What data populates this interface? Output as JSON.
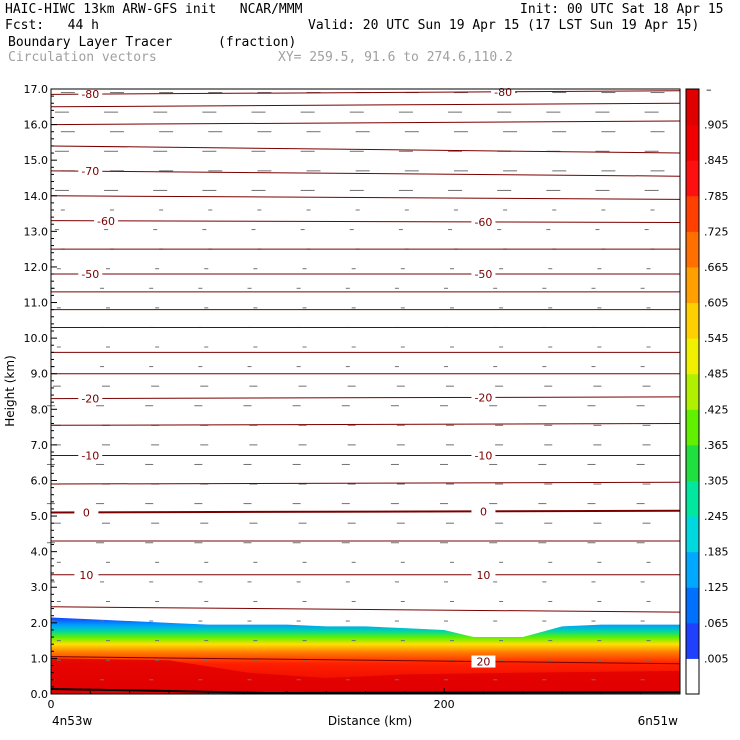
{
  "header": {
    "line1_left": "HAIC-HIWC 13km ARW-GFS init   NCAR/MMM",
    "line1_right": "Init: 00 UTC Sat 18 Apr 15",
    "line2_left": "Fcst:   44 h",
    "line2_right": "Valid: 20 UTC Sun 19 Apr 15 (17 LST Sun 19 Apr 15)",
    "field_name": "Boundary Layer Tracer",
    "field_units": "(fraction)",
    "vector_name": "Circulation vectors",
    "xy_range": "XY= 259.5, 91.6 to 274.6,110.2"
  },
  "chart_data": {
    "type": "heatmap",
    "xlabel": "Distance (km)",
    "ylabel": "Height (km)",
    "xlim": [
      0,
      320
    ],
    "ylim": [
      0,
      17
    ],
    "x_ticks": [
      "0",
      "200"
    ],
    "x_tick_values": [
      0,
      200
    ],
    "y_ticks": [
      "0.0",
      "1.0",
      "2.0",
      "3.0",
      "4.0",
      "5.0",
      "6.0",
      "7.0",
      "8.0",
      "9.0",
      "10.0",
      "11.0",
      "12.0",
      "13.0",
      "14.0",
      "15.0",
      "16.0",
      "17.0"
    ],
    "x_endpoints": {
      "left": "4n53w",
      "right": "6n51w"
    },
    "colorbar": {
      "labels": [
        ".005",
        ".065",
        ".125",
        ".185",
        ".245",
        ".305",
        ".365",
        ".425",
        ".485",
        ".545",
        ".605",
        ".665",
        ".725",
        ".785",
        ".845",
        ".905"
      ],
      "top_label": "–",
      "colors": [
        "#ffffff",
        "#2040ff",
        "#0070ff",
        "#00a8ff",
        "#00d8e0",
        "#00e8a0",
        "#20e040",
        "#60f000",
        "#b0f000",
        "#f0f000",
        "#ffd000",
        "#ffa000",
        "#ff7000",
        "#ff4000",
        "#ff1010",
        "#f00000",
        "#e00000"
      ]
    },
    "tracer_top_km": [
      2.15,
      2.1,
      2.05,
      2.0,
      1.95,
      1.95,
      1.95,
      1.9,
      1.9,
      1.85,
      1.8,
      1.6,
      1.6,
      1.9,
      1.95,
      1.95,
      1.95
    ],
    "tracer_x_km": [
      0,
      20,
      40,
      60,
      80,
      100,
      120,
      140,
      160,
      180,
      200,
      215,
      240,
      260,
      280,
      300,
      320
    ],
    "temperature_contours": [
      {
        "label": "-80",
        "y": [
          16.85,
          16.95
        ]
      },
      {
        "label": "",
        "y": [
          16.5,
          16.6
        ]
      },
      {
        "label": "",
        "y": [
          16.0,
          16.1
        ]
      },
      {
        "label": "",
        "y": [
          15.4,
          15.2
        ]
      },
      {
        "label": "-70",
        "y": [
          14.7,
          14.55
        ]
      },
      {
        "label": "",
        "y": [
          14.0,
          13.9
        ]
      },
      {
        "label": "-60",
        "y": [
          13.3,
          13.25
        ]
      },
      {
        "label": "",
        "y": [
          12.5,
          12.5
        ]
      },
      {
        "label": "-50",
        "y": [
          11.8,
          11.8
        ]
      },
      {
        "label": "",
        "y": [
          11.3,
          11.3
        ]
      },
      {
        "label": "",
        "y": [
          10.8,
          10.8
        ]
      },
      {
        "label": "",
        "y": [
          10.3,
          10.3
        ]
      },
      {
        "label": "",
        "y": [
          9.6,
          9.6
        ]
      },
      {
        "label": "",
        "y": [
          9.0,
          9.0
        ]
      },
      {
        "label": "-20",
        "y": [
          8.3,
          8.35
        ]
      },
      {
        "label": "",
        "y": [
          7.55,
          7.6
        ]
      },
      {
        "label": "-10",
        "y": [
          6.7,
          6.7
        ]
      },
      {
        "label": "",
        "y": [
          5.9,
          5.95
        ]
      },
      {
        "label": "0",
        "y": [
          5.1,
          5.15
        ]
      },
      {
        "label": "",
        "y": [
          4.3,
          4.3
        ]
      },
      {
        "label": "10",
        "y": [
          3.35,
          3.35
        ]
      },
      {
        "label": "",
        "y": [
          2.45,
          2.3
        ]
      },
      {
        "label": "20",
        "y": [
          1.05,
          0.85
        ]
      }
    ],
    "contour_label_positions": [
      {
        "label": "-80",
        "x": 20
      },
      {
        "label": "-80",
        "x": 230
      },
      {
        "label": "-70",
        "x": 20
      },
      {
        "label": "-60",
        "x": 28
      },
      {
        "label": "-60",
        "x": 220
      },
      {
        "label": "-50",
        "x": 20
      },
      {
        "label": "-50",
        "x": 220
      },
      {
        "label": "-20",
        "x": 20
      },
      {
        "label": "-20",
        "x": 220
      },
      {
        "label": "-10",
        "x": 20
      },
      {
        "label": "-10",
        "x": 220
      },
      {
        "label": "0",
        "x": 18
      },
      {
        "label": "0",
        "x": 220
      },
      {
        "label": "10",
        "x": 18
      },
      {
        "label": "10",
        "x": 220
      },
      {
        "label": "20",
        "x": 220
      }
    ]
  }
}
